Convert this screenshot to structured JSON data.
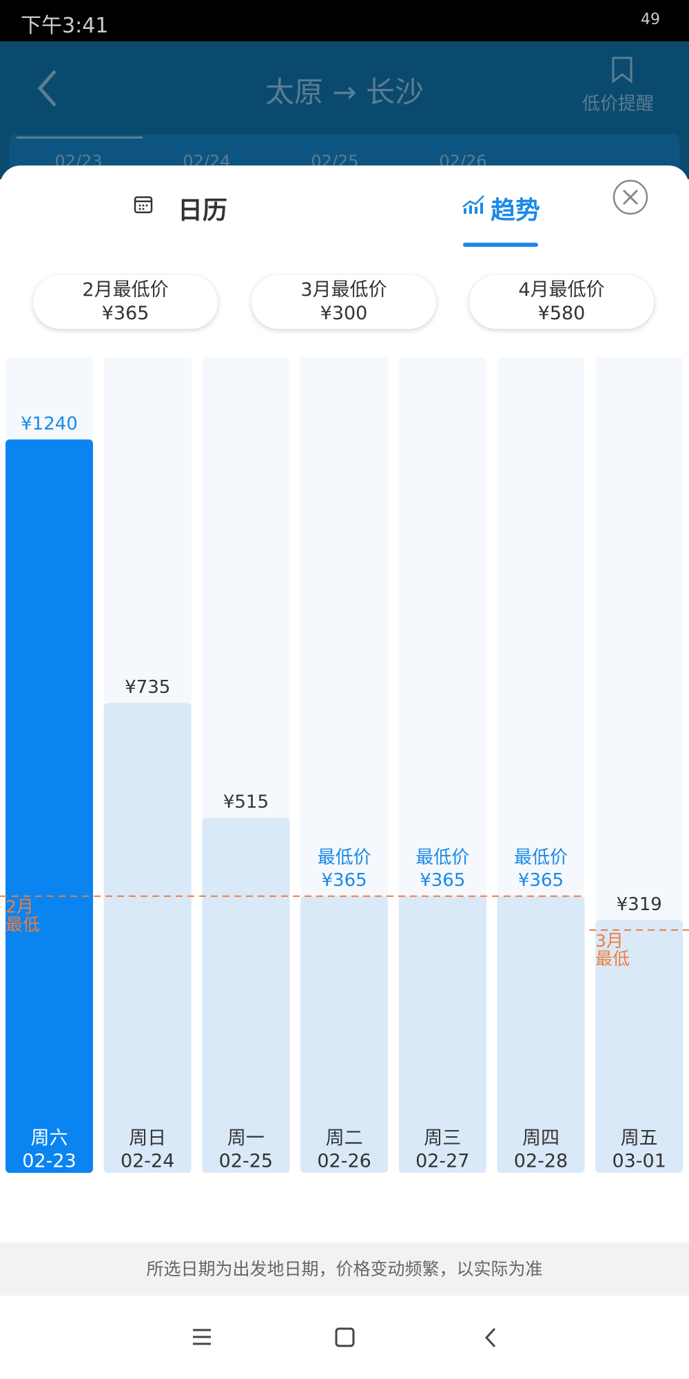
{
  "status_bar": {
    "time": "下午3:41",
    "battery": "49"
  },
  "header": {
    "title": "太原 → 长沙",
    "alert": "低价提醒",
    "dates": [
      "02/23",
      "02/24",
      "02/25",
      "02/26"
    ]
  },
  "tabs": [
    "日历",
    "趋势"
  ],
  "active_tab": 1,
  "month_lows": [
    {
      "label": "2月最低价",
      "price": 365,
      "price_label": "¥365"
    },
    {
      "label": "3月最低价",
      "price": 300,
      "price_label": "¥300"
    },
    {
      "label": "4月最低价",
      "price": 580,
      "price_label": "¥580"
    }
  ],
  "days": [
    {
      "weekday": "周六",
      "date": "02-23",
      "price": 1240,
      "price_label": "¥1240"
    },
    {
      "weekday": "周日",
      "date": "02-24",
      "price": 735,
      "price_label": "¥735"
    },
    {
      "weekday": "周一",
      "date": "02-25",
      "price": 515,
      "price_label": "¥515"
    },
    {
      "weekday": "周二",
      "date": "02-26",
      "price": 365,
      "price_label": "¥365",
      "tag": "最低价"
    },
    {
      "weekday": "周三",
      "date": "02-27",
      "price": 365,
      "price_label": "¥365",
      "tag": "最低价"
    },
    {
      "weekday": "周四",
      "date": "02-28",
      "price": 365,
      "price_label": "¥365",
      "tag": "最低价"
    },
    {
      "weekday": "周五",
      "date": "03-01",
      "price": 319,
      "price_label": "¥319"
    }
  ],
  "selected_day": 0,
  "low_lines": [
    [
      "2月",
      "最低"
    ],
    [
      "3月",
      "最低"
    ]
  ],
  "footer": "所选日期为出发地日期，价格变动频繁，以实际为准"
}
